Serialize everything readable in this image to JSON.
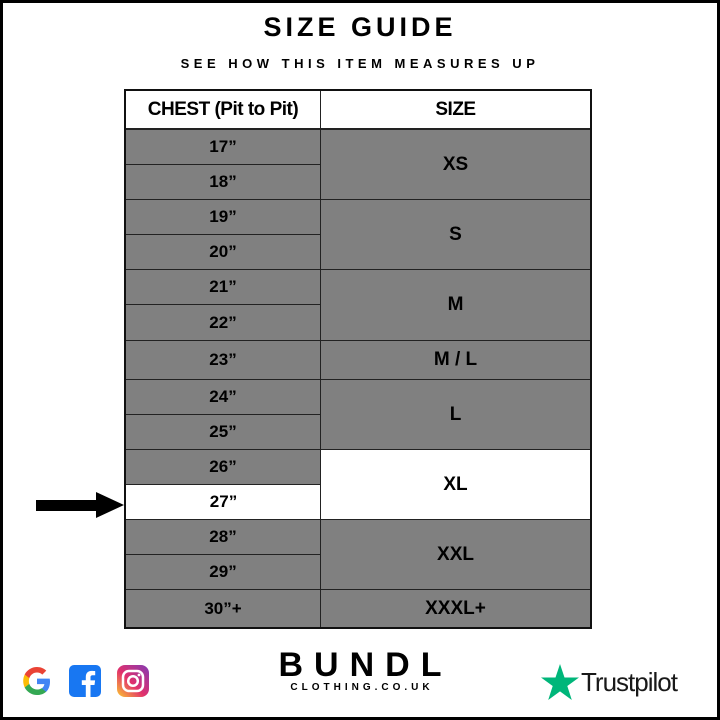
{
  "title": "SIZE GUIDE",
  "subtitle": "SEE HOW THIS ITEM MEASURES UP",
  "table": {
    "headers": [
      "CHEST (Pit to Pit)",
      "SIZE"
    ],
    "chest": [
      "17”",
      "18”",
      "19”",
      "20”",
      "21”",
      "22”",
      "23”",
      "24”",
      "25”",
      "26”",
      "27”",
      "28”",
      "29”",
      "30”+"
    ],
    "sizes": [
      "XS",
      "S",
      "M",
      "M / L",
      "L",
      "XL",
      "XXL",
      "XXXL+"
    ],
    "highlighted_chest": "27”",
    "highlighted_size": "XL"
  },
  "colors": {
    "row_fill": "#808080",
    "highlight_fill": "#ffffff",
    "trustpilot_green": "#00b67a"
  },
  "footer": {
    "brand": "BUNDL",
    "brand_sub": "CLOTHING.CO.UK",
    "trustpilot": "Trustpilot",
    "social_icons": [
      "google-icon",
      "facebook-icon",
      "instagram-icon"
    ]
  }
}
